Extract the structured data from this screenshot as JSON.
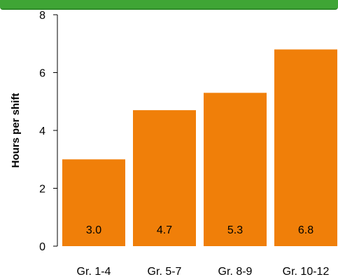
{
  "chart_data": {
    "type": "bar",
    "categories": [
      "Gr. 1-4",
      "Gr. 5-7",
      "Gr. 8-9",
      "Gr. 10-12"
    ],
    "values": [
      3.0,
      4.7,
      5.3,
      6.8
    ],
    "value_labels": [
      "3.0",
      "4.7",
      "5.3",
      "6.8"
    ],
    "title": "",
    "xlabel": "",
    "ylabel": "Hours per shift",
    "ylim": [
      0,
      8
    ],
    "yticks": [
      0,
      2,
      4,
      6,
      8
    ],
    "grid": false,
    "legend": "none",
    "colors": {
      "bar": "#f07f09",
      "header_bar": "#3fa535",
      "axis": "#000000"
    }
  }
}
